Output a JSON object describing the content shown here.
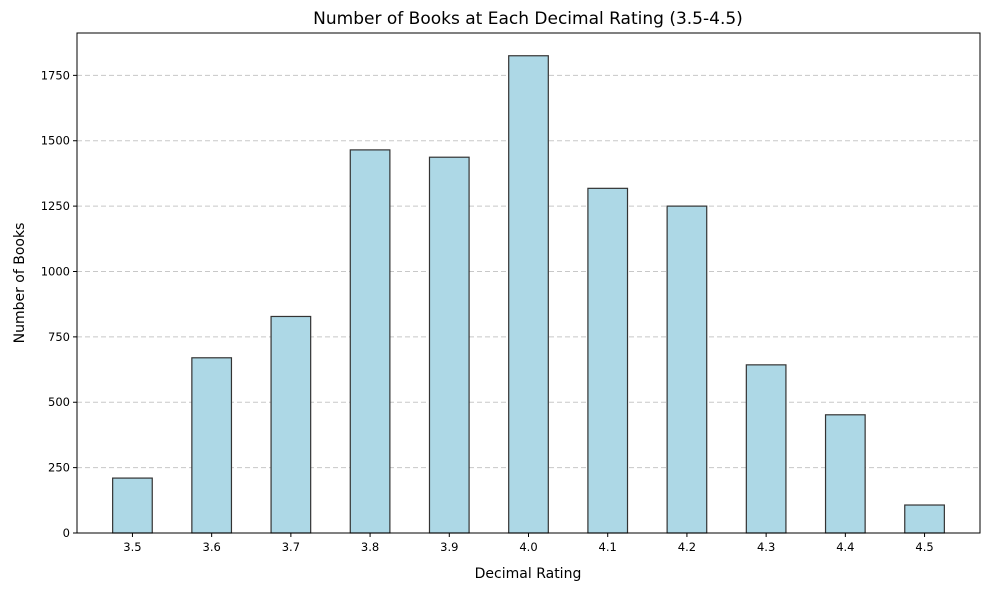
{
  "chart_data": {
    "type": "bar",
    "title": "Number of Books at Each Decimal Rating (3.5-4.5)",
    "xlabel": "Decimal Rating",
    "ylabel": "Number of Books",
    "categories": [
      "3.5",
      "3.6",
      "3.7",
      "3.8",
      "3.9",
      "4.0",
      "4.1",
      "4.2",
      "4.3",
      "4.4",
      "4.5"
    ],
    "values": [
      210,
      670,
      828,
      1465,
      1437,
      1825,
      1318,
      1250,
      643,
      452,
      107
    ],
    "ylim": [
      0,
      1912
    ],
    "yticks": [
      0,
      250,
      500,
      750,
      1000,
      1250,
      1500,
      1750
    ],
    "grid": "y-dashed",
    "legend": "none",
    "colors": {
      "bar_fill": "#add8e6",
      "bar_stroke": "#333333",
      "grid": "#c8c8c8",
      "axis": "#000000"
    }
  }
}
